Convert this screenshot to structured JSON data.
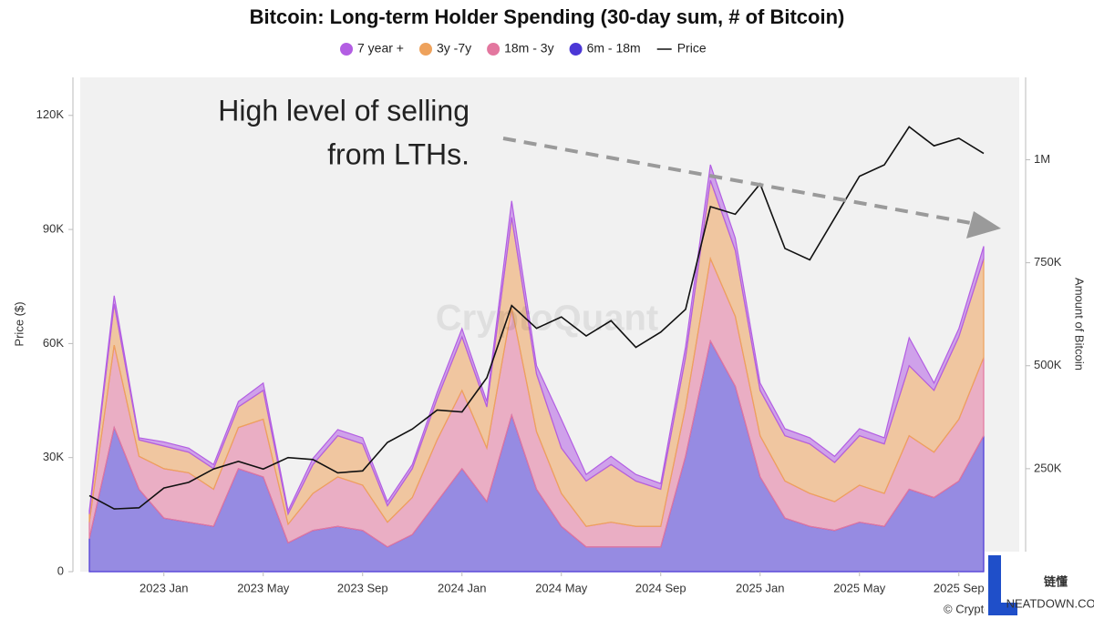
{
  "chart_data": {
    "type": "stacked-area-line",
    "title": "Bitcoin: Long-term Holder Spending (30-day sum, # of Bitcoin)",
    "y_label": "Price ($)",
    "y2_label": "Amount of Bitcoin",
    "annotation": [
      "High level of selling",
      "from LTHs."
    ],
    "watermark": "CryptoQuant",
    "credit": "© CryptoQuant",
    "logo": {
      "text": "链懂",
      "subtext": "NEATDOWN.COM"
    },
    "x": [
      "2022-10",
      "2022-11",
      "2022-12",
      "2023-01",
      "2023-02",
      "2023-03",
      "2023-04",
      "2023-05",
      "2023-06",
      "2023-07",
      "2023-08",
      "2023-09",
      "2023-10",
      "2023-11",
      "2023-12",
      "2024-01",
      "2024-02",
      "2024-03",
      "2024-04",
      "2024-05",
      "2024-06",
      "2024-07",
      "2024-08",
      "2024-09",
      "2024-10",
      "2024-11",
      "2024-12",
      "2025-01",
      "2025-02",
      "2025-03",
      "2025-04",
      "2025-05",
      "2025-06",
      "2025-07",
      "2025-08",
      "2025-09",
      "2025-10"
    ],
    "xlim": [
      "2022-10",
      "2025-10"
    ],
    "xticks": [
      {
        "value": "2023-01",
        "label": "2023 Jan"
      },
      {
        "value": "2023-05",
        "label": "2023 May"
      },
      {
        "value": "2023-09",
        "label": "2023 Sep"
      },
      {
        "value": "2024-01",
        "label": "2024 Jan"
      },
      {
        "value": "2024-05",
        "label": "2024 May"
      },
      {
        "value": "2024-09",
        "label": "2024 Sep"
      },
      {
        "value": "2025-01",
        "label": "2025 Jan"
      },
      {
        "value": "2025-05",
        "label": "2025 May"
      },
      {
        "value": "2025-09",
        "label": "2025 Sep"
      }
    ],
    "ylim": [
      0,
      130000
    ],
    "yticks": [
      0,
      {
        "value": 30000,
        "label": "30K"
      },
      {
        "value": 60000,
        "label": "60K"
      },
      {
        "value": 90000,
        "label": "90K"
      },
      {
        "value": 120000,
        "label": "120K"
      }
    ],
    "y2lim": [
      0,
      1200000
    ],
    "y2ticks": [
      {
        "value": 250000,
        "label": "250K"
      },
      {
        "value": 500000,
        "label": "500K"
      },
      {
        "value": 750000,
        "label": "750K"
      },
      {
        "value": 1000000,
        "label": "1M"
      }
    ],
    "grid": false,
    "series": [
      {
        "name": "7 year +",
        "color": "#b35ee3",
        "kind": "area",
        "axis": "y2",
        "values": [
          8000,
          20000,
          5000,
          10000,
          10000,
          10000,
          13000,
          18000,
          8000,
          15000,
          15000,
          15000,
          10000,
          10000,
          15000,
          20000,
          13000,
          40000,
          20000,
          70000,
          16000,
          20000,
          16000,
          14000,
          26000,
          38000,
          30000,
          18000,
          17000,
          15000,
          15000,
          17000,
          15000,
          68000,
          18000,
          20000,
          30000
        ]
      },
      {
        "name": "3y -7y",
        "color": "#eea25c",
        "kind": "area",
        "axis": "y2",
        "values": [
          20000,
          100000,
          40000,
          55000,
          50000,
          50000,
          50000,
          70000,
          25000,
          70000,
          100000,
          100000,
          40000,
          70000,
          100000,
          130000,
          100000,
          220000,
          140000,
          110000,
          110000,
          140000,
          110000,
          90000,
          120000,
          190000,
          160000,
          110000,
          110000,
          120000,
          95000,
          120000,
          120000,
          170000,
          150000,
          200000,
          240000
        ]
      },
      {
        "name": "18m - 3y",
        "color": "#e3779f",
        "kind": "area",
        "axis": "y2",
        "values": [
          40000,
          200000,
          80000,
          120000,
          120000,
          90000,
          100000,
          140000,
          45000,
          90000,
          120000,
          110000,
          60000,
          90000,
          150000,
          190000,
          130000,
          260000,
          140000,
          80000,
          50000,
          60000,
          50000,
          50000,
          120000,
          200000,
          170000,
          100000,
          90000,
          80000,
          70000,
          90000,
          80000,
          130000,
          110000,
          150000,
          190000
        ]
      },
      {
        "name": "6m - 18m",
        "color": "#4b37d6",
        "kind": "area",
        "axis": "y2",
        "values": [
          80000,
          350000,
          200000,
          130000,
          120000,
          110000,
          250000,
          230000,
          70000,
          100000,
          110000,
          100000,
          60000,
          90000,
          170000,
          250000,
          170000,
          380000,
          200000,
          110000,
          60000,
          60000,
          60000,
          60000,
          280000,
          560000,
          450000,
          230000,
          130000,
          110000,
          100000,
          120000,
          110000,
          200000,
          180000,
          220000,
          330000
        ]
      },
      {
        "name": "Price",
        "color": "#111111",
        "kind": "line",
        "values": [
          20000,
          16500,
          16800,
          22000,
          23500,
          27000,
          29000,
          27000,
          30000,
          29500,
          26000,
          26500,
          34000,
          37500,
          42500,
          42000,
          51000,
          70000,
          64000,
          67000,
          62000,
          66000,
          59000,
          63000,
          69000,
          96000,
          94000,
          102000,
          85000,
          82000,
          93000,
          104000,
          107000,
          117000,
          112000,
          114000,
          110000
        ]
      }
    ]
  }
}
